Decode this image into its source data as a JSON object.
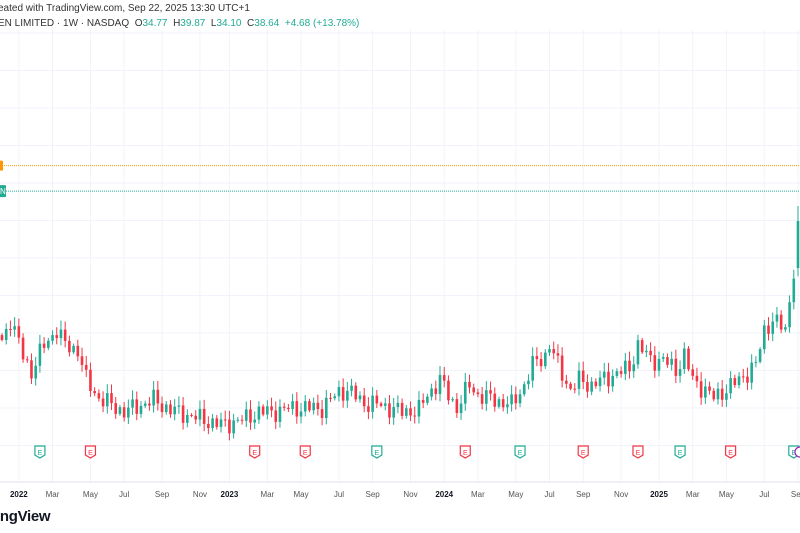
{
  "header": {
    "created_text": "eated with TradingView.com, Sep 22, 2025 13:30 UTC+1",
    "symbol_text": "EN LIMITED · 1W · NASDAQ",
    "open_label": "O",
    "open": "34.77",
    "high_label": "H",
    "high": "39.87",
    "low_label": "L",
    "low": "34.10",
    "close_label": "C",
    "close": "38.64",
    "change": "+4.68 (+13.78%)"
  },
  "colors": {
    "up": "#22ab94",
    "down": "#f23645",
    "orange_line": "#ff9800",
    "green_line": "#22ab94",
    "grid": "#f0f3fa",
    "dividend": "#9c27b0"
  },
  "price_marker_label": "N",
  "footer": {
    "logo_text": "ingView"
  },
  "chart_data": {
    "type": "candlestick",
    "interval": "1W",
    "ylim": [
      20.5,
      45.5
    ],
    "close_path": [
      {
        "week": 0,
        "close": 28.85
      },
      {
        "week": 2,
        "close": 30.49
      },
      {
        "week": 5,
        "close": 27.61
      },
      {
        "week": 7,
        "close": 26.21
      },
      {
        "week": 10,
        "close": 28.43
      },
      {
        "week": 13,
        "close": 29.67
      },
      {
        "week": 15,
        "close": 28.43
      },
      {
        "week": 18,
        "close": 28.02
      },
      {
        "week": 20,
        "close": 25.55
      },
      {
        "week": 23,
        "close": 24.07
      },
      {
        "week": 26,
        "close": 23.5
      },
      {
        "week": 29,
        "close": 22.92
      },
      {
        "week": 33,
        "close": 23.5
      },
      {
        "week": 36,
        "close": 23.91
      },
      {
        "week": 40,
        "close": 23.09
      },
      {
        "week": 48,
        "close": 22.26
      },
      {
        "week": 52,
        "close": 21.85
      },
      {
        "week": 57,
        "close": 22.26
      },
      {
        "week": 61,
        "close": 22.92
      },
      {
        "week": 64,
        "close": 22.92
      },
      {
        "week": 69,
        "close": 23.25
      },
      {
        "week": 76,
        "close": 23.25
      },
      {
        "week": 80,
        "close": 24.57
      },
      {
        "week": 82,
        "close": 24.73
      },
      {
        "week": 86,
        "close": 23.66
      },
      {
        "week": 90,
        "close": 23.5
      },
      {
        "week": 95,
        "close": 22.92
      },
      {
        "week": 99,
        "close": 23.09
      },
      {
        "week": 101,
        "close": 24.32
      },
      {
        "week": 104,
        "close": 25.55
      },
      {
        "week": 106,
        "close": 24.32
      },
      {
        "week": 108,
        "close": 23.25
      },
      {
        "week": 111,
        "close": 25.14
      },
      {
        "week": 113,
        "close": 24.32
      },
      {
        "week": 117,
        "close": 23.91
      },
      {
        "week": 121,
        "close": 23.5
      },
      {
        "week": 124,
        "close": 25.14
      },
      {
        "week": 126,
        "close": 26.79
      },
      {
        "week": 129,
        "close": 27.61
      },
      {
        "week": 130,
        "close": 28.43
      },
      {
        "week": 132,
        "close": 26.79
      },
      {
        "week": 135,
        "close": 24.73
      },
      {
        "week": 137,
        "close": 25.55
      },
      {
        "week": 140,
        "close": 25.14
      },
      {
        "week": 145,
        "close": 25.96
      },
      {
        "week": 149,
        "close": 26.54
      },
      {
        "week": 151,
        "close": 28.43
      },
      {
        "week": 154,
        "close": 27.2
      },
      {
        "week": 157,
        "close": 27.2
      },
      {
        "week": 160,
        "close": 26.38
      },
      {
        "week": 162,
        "close": 27.61
      },
      {
        "week": 164,
        "close": 25.55
      },
      {
        "week": 167,
        "close": 24.73
      },
      {
        "week": 169,
        "close": 24.07
      },
      {
        "week": 171,
        "close": 24.57
      },
      {
        "week": 175,
        "close": 25.55
      },
      {
        "week": 179,
        "close": 26.79
      },
      {
        "week": 181,
        "close": 29.67
      },
      {
        "week": 183,
        "close": 30.49
      },
      {
        "week": 186,
        "close": 29.67
      },
      {
        "week": 188,
        "close": 34.6
      },
      {
        "week": 189,
        "close": 34.77
      }
    ],
    "last_candle": {
      "open": 34.77,
      "high": 39.87,
      "low": 34.1,
      "close": 38.64
    },
    "hlines": [
      {
        "price": 43.2,
        "style": "orange-dotted"
      },
      {
        "price": 41.1,
        "style": "green-dotted"
      }
    ],
    "x_ticks": [
      {
        "label": "2022",
        "week": 4,
        "bold": true
      },
      {
        "label": "Mar",
        "week": 12
      },
      {
        "label": "May",
        "week": 21
      },
      {
        "label": "Jul",
        "week": 29
      },
      {
        "label": "Sep",
        "week": 38
      },
      {
        "label": "Nov",
        "week": 47
      },
      {
        "label": "2023",
        "week": 54,
        "bold": true
      },
      {
        "label": "Mar",
        "week": 63
      },
      {
        "label": "May",
        "week": 71
      },
      {
        "label": "Jul",
        "week": 80
      },
      {
        "label": "Sep",
        "week": 88
      },
      {
        "label": "Nov",
        "week": 97
      },
      {
        "label": "2024",
        "week": 105,
        "bold": true
      },
      {
        "label": "Mar",
        "week": 113
      },
      {
        "label": "May",
        "week": 122
      },
      {
        "label": "Jul",
        "week": 130
      },
      {
        "label": "Sep",
        "week": 138
      },
      {
        "label": "Nov",
        "week": 147
      },
      {
        "label": "2025",
        "week": 156,
        "bold": true
      },
      {
        "label": "Mar",
        "week": 164
      },
      {
        "label": "May",
        "week": 172
      },
      {
        "label": "Jul",
        "week": 181
      },
      {
        "label": "Sep",
        "week": 189
      }
    ],
    "earnings": [
      {
        "week": 9,
        "label": "E",
        "type": "beat"
      },
      {
        "week": 21,
        "label": "E",
        "type": "miss"
      },
      {
        "week": 60,
        "label": "E",
        "type": "miss"
      },
      {
        "week": 72,
        "label": "E",
        "type": "miss"
      },
      {
        "week": 89,
        "label": "E",
        "type": "beat"
      },
      {
        "week": 110,
        "label": "E",
        "type": "miss"
      },
      {
        "week": 123,
        "label": "E",
        "type": "beat"
      },
      {
        "week": 138,
        "label": "E",
        "type": "miss"
      },
      {
        "week": 151,
        "label": "E",
        "type": "miss"
      },
      {
        "week": 161,
        "label": "E",
        "type": "beat"
      },
      {
        "week": 173,
        "label": "E",
        "type": "miss"
      },
      {
        "week": 188,
        "label": "E",
        "type": "beat"
      }
    ]
  }
}
